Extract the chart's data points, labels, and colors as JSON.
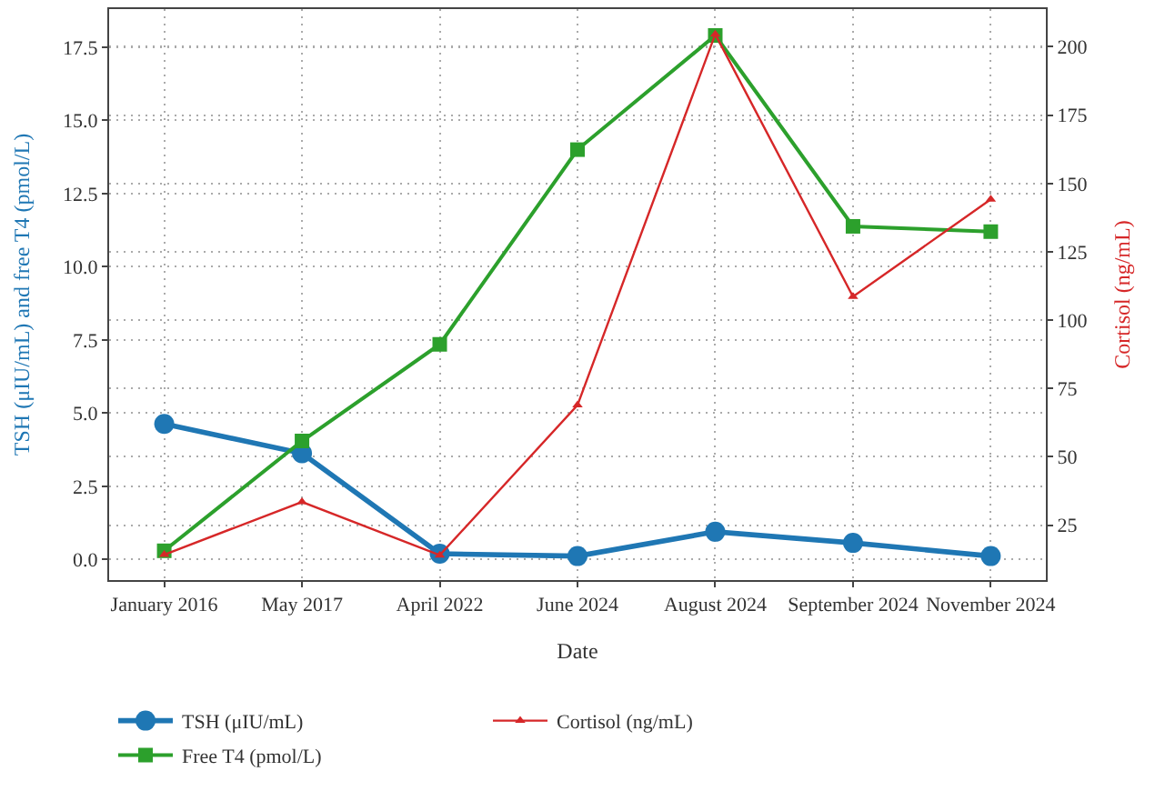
{
  "chart_data": {
    "type": "line",
    "xlabel": "Date",
    "ylabel": "TSH (μIU/mL) and free T4 (pmol/L)",
    "y2label": "Cortisol (ng/mL)",
    "categories": [
      "January 2016",
      "May 2017",
      "April 2022",
      "June 2024",
      "August 2024",
      "September 2024",
      "November 2024"
    ],
    "series": [
      {
        "name": "TSH (μIU/mL)",
        "color": "#1f77b4",
        "marker": "circle",
        "values": [
          4.63,
          3.63,
          0.2,
          0.12,
          0.95,
          0.57,
          0.12
        ]
      },
      {
        "name": "Free T4 (pmol/L)",
        "color": "#2ca02c",
        "marker": "square",
        "values": [
          0.3,
          4.05,
          7.35,
          14.0,
          17.9,
          11.38,
          11.2
        ]
      },
      {
        "name": "Cortisol (ng/mL)",
        "color": "#d62728",
        "marker": "triangle",
        "axis": "y2",
        "values": [
          14.2,
          33.5,
          14.0,
          68.9,
          204.6,
          108.6,
          144.2
        ]
      }
    ],
    "ylim": [
      -0.7,
      18.8
    ],
    "yticks": [
      {
        "value": 0,
        "label": "0.0"
      },
      {
        "value": 2.5,
        "label": "2.5"
      },
      {
        "value": 5,
        "label": "5.0"
      },
      {
        "value": 7.5,
        "label": "7.5"
      },
      {
        "value": 10,
        "label": "10.0"
      },
      {
        "value": 12.5,
        "label": "12.5"
      },
      {
        "value": 15,
        "label": "15.0"
      },
      {
        "value": 17.5,
        "label": "17.5"
      }
    ],
    "y2lim": [
      4.9,
      213.8
    ],
    "y2ticks": [
      25,
      50,
      75,
      100,
      125,
      150,
      175,
      200
    ],
    "grid": true,
    "legend": "bottom",
    "line_style": "solid"
  }
}
